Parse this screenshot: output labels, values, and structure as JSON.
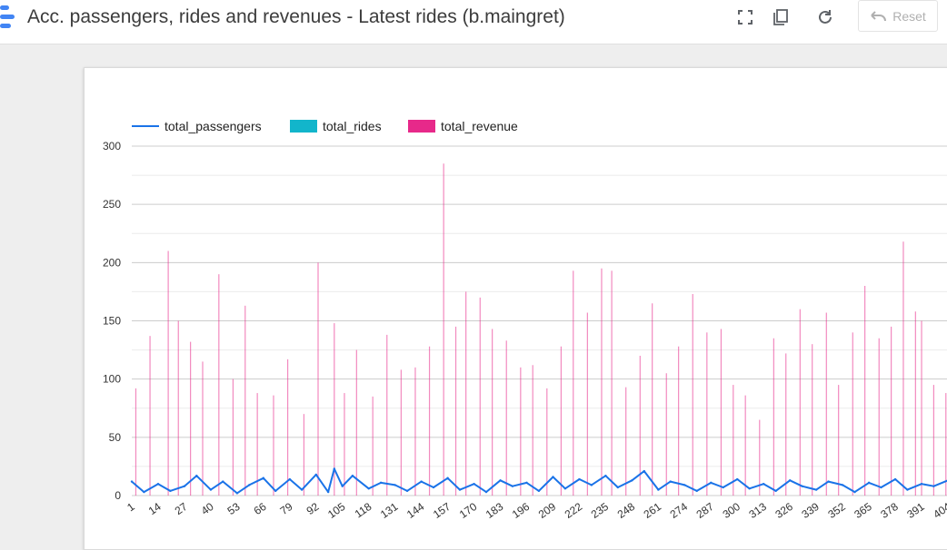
{
  "header": {
    "title": "Acc. passengers, rides and revenues - Latest rides (b.maingret)",
    "reset_label": "Reset",
    "icons": [
      "fullscreen-icon",
      "copy-icon",
      "refresh-icon",
      "undo-icon"
    ]
  },
  "chart_data": {
    "type": "line",
    "legend_position": "top-left",
    "grid": true,
    "ylim": [
      0,
      300
    ],
    "y_ticks": [
      "0",
      "50",
      "100",
      "150",
      "200",
      "250",
      "300"
    ],
    "x_ticks": [
      "1",
      "14",
      "27",
      "40",
      "53",
      "66",
      "79",
      "92",
      "105",
      "118",
      "131",
      "144",
      "157",
      "170",
      "183",
      "196",
      "209",
      "222",
      "235",
      "248",
      "261",
      "274",
      "287",
      "300",
      "313",
      "326",
      "339",
      "352",
      "365",
      "378",
      "391",
      "404"
    ],
    "x_range": [
      1,
      404
    ],
    "series": [
      {
        "name": "total_passengers",
        "kind": "line",
        "color": "#1a73e8",
        "x": [
          1,
          7,
          14,
          20,
          27,
          33,
          40,
          46,
          53,
          59,
          66,
          72,
          79,
          85,
          92,
          98,
          101,
          105,
          110,
          118,
          124,
          131,
          137,
          144,
          150,
          157,
          163,
          170,
          176,
          183,
          189,
          196,
          202,
          209,
          215,
          222,
          228,
          235,
          241,
          248,
          254,
          261,
          267,
          274,
          280,
          287,
          293,
          300,
          306,
          313,
          319,
          326,
          332,
          339,
          345,
          352,
          358,
          365,
          371,
          378,
          384,
          391,
          397,
          404
        ],
        "values": [
          12,
          3,
          10,
          4,
          8,
          17,
          5,
          12,
          2,
          9,
          15,
          4,
          14,
          5,
          18,
          3,
          23,
          8,
          17,
          6,
          11,
          9,
          4,
          12,
          7,
          15,
          5,
          10,
          3,
          13,
          8,
          11,
          4,
          16,
          6,
          14,
          9,
          17,
          7,
          13,
          21,
          5,
          12,
          9,
          4,
          11,
          7,
          14,
          6,
          10,
          4,
          13,
          8,
          5,
          12,
          9,
          3,
          11,
          7,
          14,
          5,
          10,
          8,
          13
        ]
      },
      {
        "name": "total_rides",
        "kind": "bar",
        "color": "#12b5cb",
        "values": []
      },
      {
        "name": "total_revenue",
        "kind": "bar",
        "color": "#e7298a",
        "x": [
          3,
          10,
          19,
          24,
          30,
          36,
          44,
          51,
          57,
          63,
          71,
          78,
          86,
          93,
          101,
          106,
          112,
          120,
          127,
          134,
          141,
          148,
          155,
          161,
          166,
          173,
          179,
          186,
          193,
          199,
          206,
          213,
          219,
          226,
          233,
          238,
          245,
          252,
          258,
          265,
          271,
          278,
          285,
          292,
          298,
          304,
          311,
          318,
          324,
          331,
          337,
          344,
          350,
          357,
          363,
          370,
          376,
          382,
          388,
          391,
          397,
          403
        ],
        "values": [
          92,
          137,
          210,
          150,
          132,
          115,
          190,
          100,
          163,
          88,
          86,
          117,
          70,
          200,
          148,
          88,
          125,
          85,
          138,
          108,
          110,
          128,
          285,
          145,
          175,
          170,
          143,
          133,
          110,
          112,
          92,
          128,
          193,
          157,
          195,
          193,
          93,
          120,
          165,
          105,
          128,
          173,
          140,
          143,
          95,
          86,
          65,
          135,
          122,
          160,
          130,
          157,
          95,
          140,
          180,
          135,
          145,
          218,
          158,
          150,
          95,
          88
        ]
      }
    ]
  }
}
